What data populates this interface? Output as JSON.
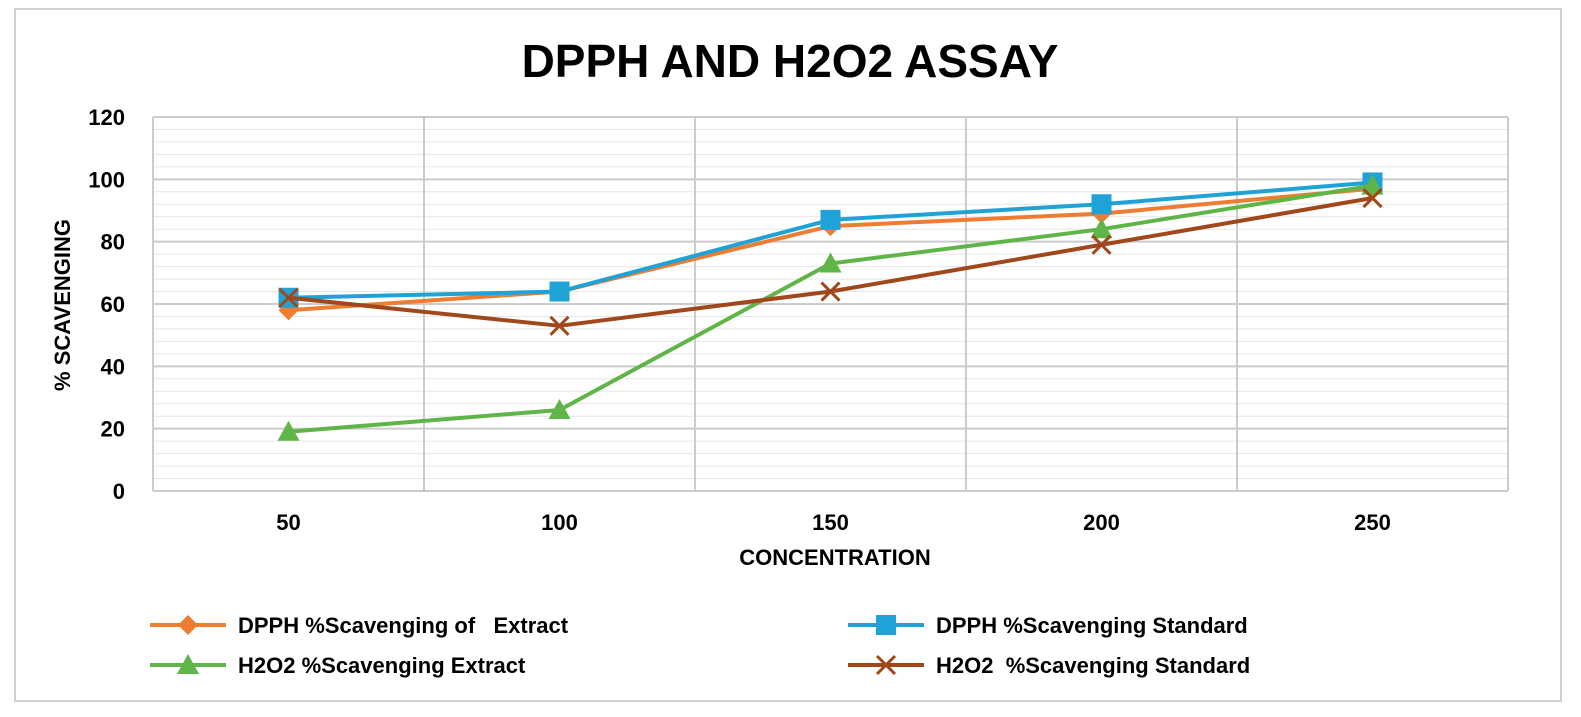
{
  "chart_data": {
    "type": "line",
    "title": "DPPH AND H2O2 ASSAY",
    "xlabel": "CONCENTRATION",
    "ylabel": "% SCAVENGING",
    "categories": [
      "50",
      "100",
      "150",
      "200",
      "250"
    ],
    "ylim": [
      0,
      120
    ],
    "yticks": [
      0,
      20,
      40,
      60,
      80,
      100,
      120
    ],
    "grid": true,
    "legend_position": "bottom",
    "series": [
      {
        "name": "DPPH %Scavenging of   Extract",
        "color": "#ED7D31",
        "marker": "diamond",
        "values": [
          58,
          64,
          85,
          89,
          97
        ]
      },
      {
        "name": "DPPH %Scavenging Standard",
        "color": "#1FA2D6",
        "marker": "square",
        "values": [
          62,
          64,
          87,
          92,
          99
        ]
      },
      {
        "name": "H2O2 %Scavenging Extract",
        "color": "#5FB548",
        "marker": "triangle",
        "values": [
          19,
          26,
          73,
          84,
          98
        ]
      },
      {
        "name": "H2O2  %Scavenging Standard",
        "color": "#A0481C",
        "marker": "x",
        "values": [
          62,
          53,
          64,
          79,
          94
        ]
      }
    ]
  }
}
